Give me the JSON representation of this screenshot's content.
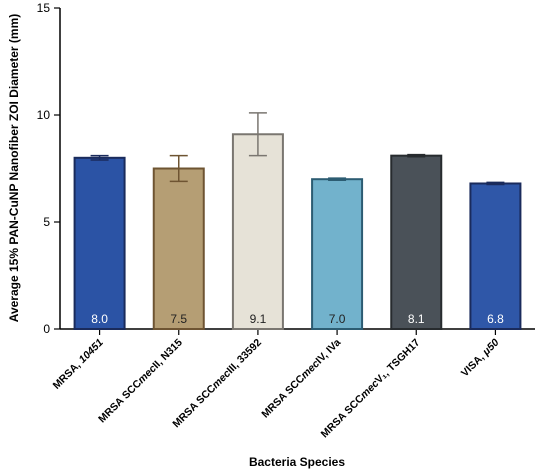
{
  "chart_data": {
    "type": "bar",
    "xlabel": "Bacteria Species",
    "ylabel": "Average 15% PAN-CuNP Nanofiber ZOI Diameter (mm)",
    "ylim": [
      0,
      15
    ],
    "yticks": [
      "0",
      "5",
      "10",
      "15"
    ],
    "grid": false,
    "legend": "none",
    "categories": [
      {
        "plain": "MRSA, ",
        "italic": "10451",
        "rest": ""
      },
      {
        "plain": "MRSA SCC",
        "italic": "mec",
        "rest": "II, N315"
      },
      {
        "plain": "MRSA SCC",
        "italic": "mec",
        "rest": "III, 33592"
      },
      {
        "plain": "MRSA SCC",
        "italic": "mec",
        "rest": "IV, IVa"
      },
      {
        "plain": "MRSA SCC",
        "italic": "mec",
        "rest": "V₁, TSGH17"
      },
      {
        "plain": "VISA, ",
        "italic": "μ50",
        "rest": ""
      }
    ],
    "values": [
      8.0,
      7.5,
      9.1,
      7.0,
      8.1,
      6.8
    ],
    "errors": [
      0.1,
      0.6,
      1.0,
      0.05,
      0.05,
      0.05
    ],
    "value_labels": [
      "8.0",
      "7.5",
      "9.1",
      "7.0",
      "8.1",
      "6.8"
    ],
    "bar_colors": [
      "#2b53a5",
      "#b59e74",
      "#e6e2d7",
      "#72b2cc",
      "#4a5158",
      "#2f57a8"
    ],
    "bar_edge_colors": [
      "#1a2b5c",
      "#6e5432",
      "#7a7670",
      "#2c5c72",
      "#272b2e",
      "#1a2b5c"
    ],
    "label_colors": [
      "#ffffff",
      "#222222",
      "#222222",
      "#222222",
      "#ffffff",
      "#ffffff"
    ]
  }
}
